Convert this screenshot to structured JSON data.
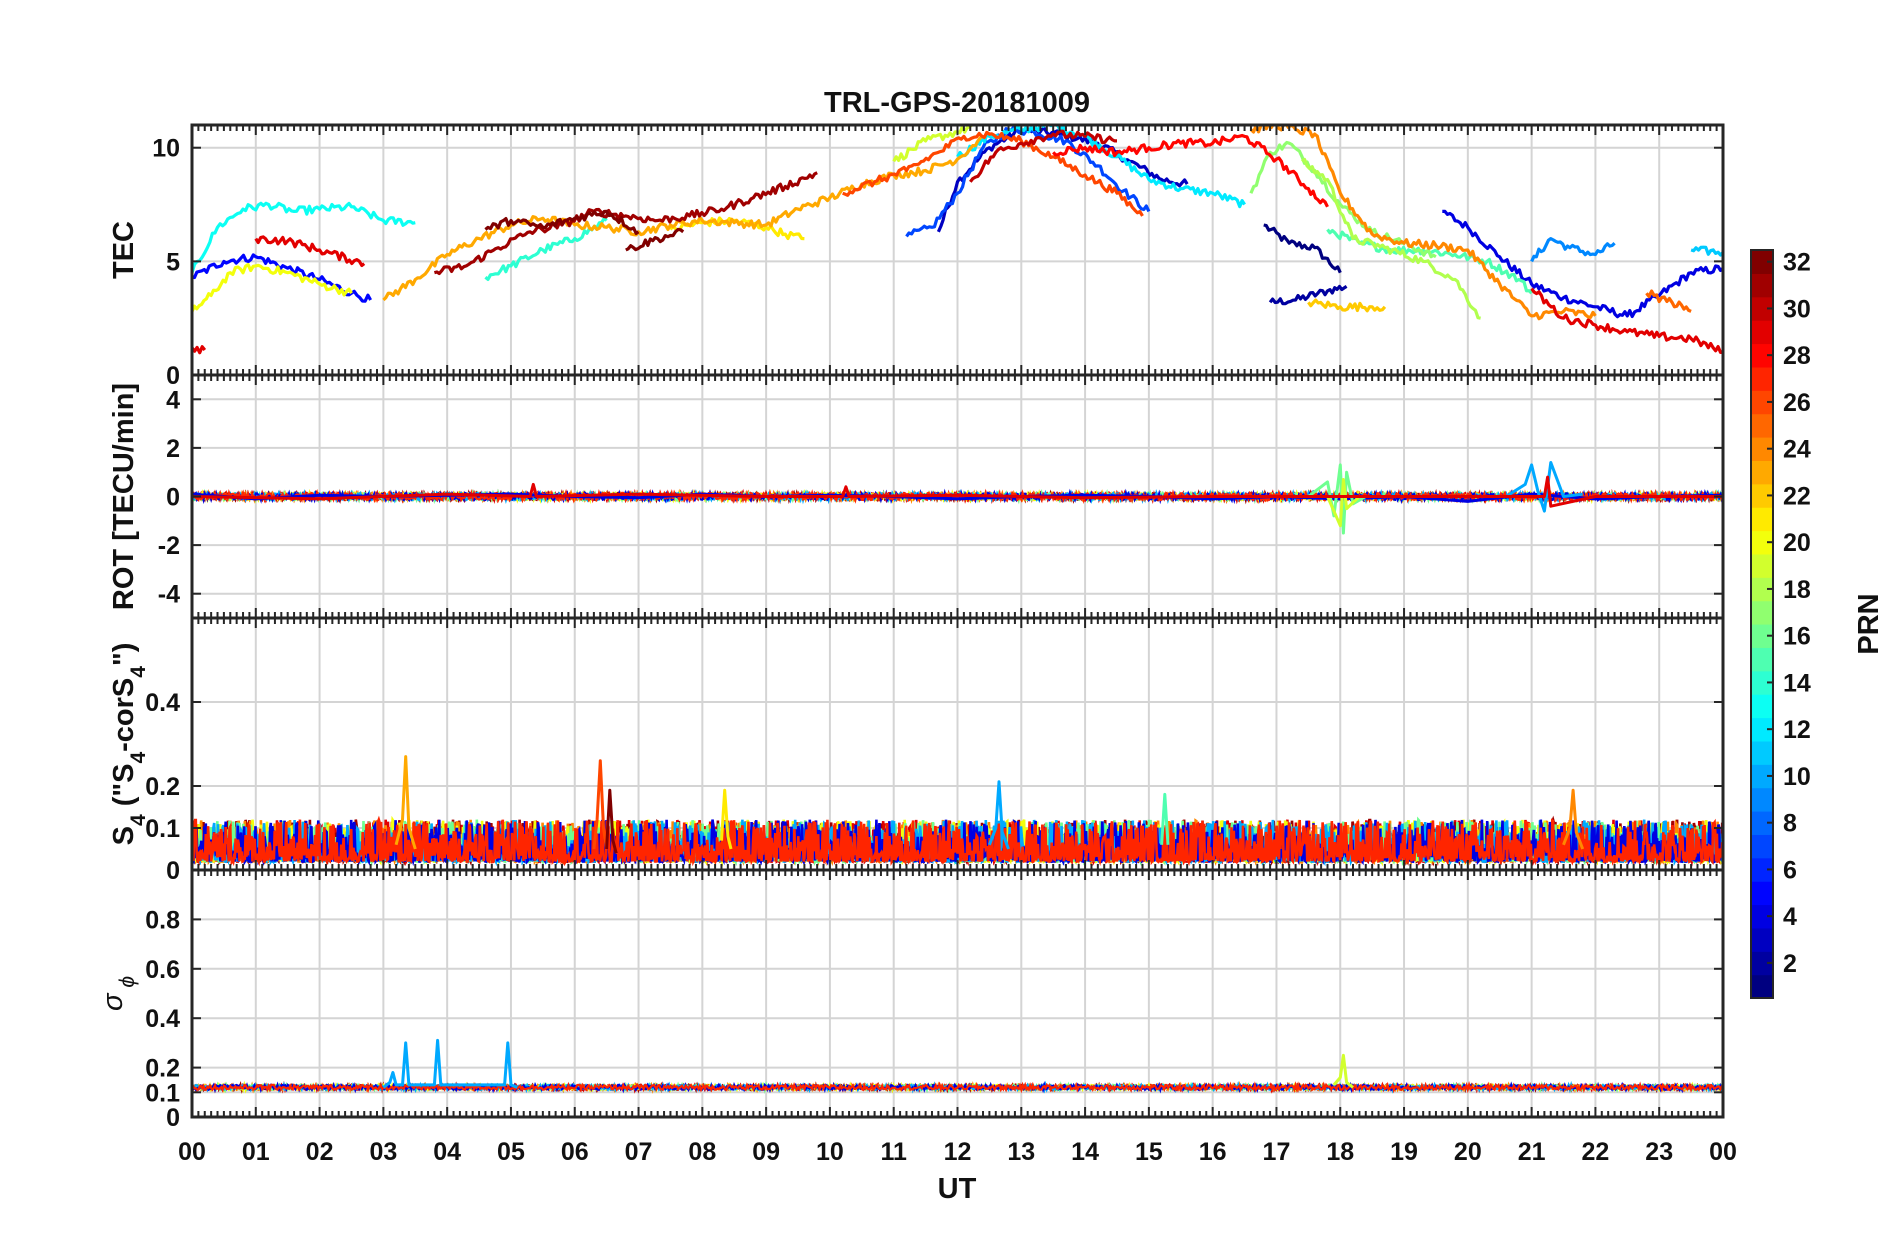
{
  "chart_data": [
    {
      "type": "line",
      "panel": "tec",
      "title": "TRL-GPS-20181009",
      "ylabel": "TEC",
      "ylim": [
        0,
        11
      ],
      "yticks": [
        "0",
        "5",
        "10"
      ],
      "grid": true,
      "series": [
        {
          "prn": 1,
          "x": [
            16.8,
            17.2,
            17.6,
            18.0
          ],
          "y": [
            6.6,
            5.8,
            5.6,
            4.5
          ]
        },
        {
          "prn": 2,
          "x": [
            16.9,
            17.3,
            17.8,
            18.1
          ],
          "y": [
            3.2,
            3.3,
            3.7,
            3.9
          ]
        },
        {
          "prn": 3,
          "x": [
            11.7,
            12.0,
            12.5,
            13.0,
            13.6,
            14.2,
            14.7,
            15.2,
            15.6
          ],
          "y": [
            6.3,
            8.5,
            10.0,
            10.8,
            10.6,
            10.2,
            9.4,
            8.6,
            8.4
          ]
        },
        {
          "prn": 4,
          "x": [
            19.6,
            20.0,
            20.5,
            21.0,
            21.5,
            22.0,
            22.5,
            23.0,
            23.5,
            24.0
          ],
          "y": [
            7.2,
            6.5,
            5.2,
            4.0,
            3.4,
            3.0,
            2.6,
            3.5,
            4.5,
            4.7
          ]
        },
        {
          "prn": 5,
          "x": [
            0.0,
            0.5,
            1.0,
            1.5,
            2.0,
            2.5,
            2.8
          ],
          "y": [
            4.3,
            5.0,
            5.2,
            4.7,
            4.2,
            3.6,
            3.3
          ]
        },
        {
          "prn": 7,
          "x": [
            11.2,
            11.6,
            12.0,
            12.4,
            12.8,
            13.2,
            13.7,
            14.2,
            14.6,
            15.0
          ],
          "y": [
            6.1,
            6.5,
            8.0,
            10.0,
            10.8,
            10.7,
            10.3,
            9.2,
            8.1,
            7.2
          ]
        },
        {
          "prn": 9,
          "x": [
            21.0,
            21.3,
            21.6,
            22.0,
            22.3
          ],
          "y": [
            5.0,
            6.0,
            5.6,
            5.3,
            5.8
          ]
        },
        {
          "prn": 11,
          "x": [
            23.5,
            24.0
          ],
          "y": [
            5.5,
            5.4
          ]
        },
        {
          "prn": 12,
          "x": [
            12.0,
            12.5,
            13.0,
            13.5,
            14.0,
            14.5,
            15.0,
            15.5,
            16.0,
            16.5
          ],
          "y": [
            9.6,
            10.5,
            10.8,
            11.0,
            10.5,
            9.6,
            8.6,
            8.2,
            8.0,
            7.5
          ]
        },
        {
          "prn": 13,
          "x": [
            0.0,
            0.4,
            0.8,
            1.2,
            1.6,
            2.0,
            2.5,
            3.0,
            3.5
          ],
          "y": [
            4.5,
            6.5,
            7.3,
            7.5,
            7.2,
            7.3,
            7.4,
            6.8,
            6.7
          ]
        },
        {
          "prn": 14,
          "x": [
            4.6,
            5.0,
            5.5,
            6.0,
            6.5
          ],
          "y": [
            4.3,
            4.8,
            5.5,
            6.0,
            6.8
          ]
        },
        {
          "prn": 15,
          "x": [
            17.8,
            18.3,
            18.8,
            19.3,
            19.8,
            20.3,
            20.8,
            21.0
          ],
          "y": [
            6.4,
            5.8,
            5.5,
            5.5,
            5.3,
            5.0,
            4.2,
            3.6
          ]
        },
        {
          "prn": 17,
          "x": [
            16.6,
            16.9,
            17.2,
            17.6,
            18.0,
            18.5,
            19.0,
            19.5
          ],
          "y": [
            8.0,
            9.8,
            10.2,
            9.0,
            7.5,
            6.3,
            5.8,
            5.2
          ]
        },
        {
          "prn": 18,
          "x": [
            17.4,
            17.8,
            18.2,
            18.7,
            19.3,
            19.8,
            20.2
          ],
          "y": [
            9.4,
            8.6,
            6.0,
            5.6,
            5.0,
            4.2,
            2.5
          ]
        },
        {
          "prn": 19,
          "x": [
            11.0,
            11.5,
            12.0,
            12.3
          ],
          "y": [
            9.4,
            10.3,
            10.7,
            11.0
          ]
        },
        {
          "prn": 20,
          "x": [
            0.0,
            0.3,
            0.6,
            1.0,
            1.5,
            2.0,
            2.5
          ],
          "y": [
            2.8,
            3.5,
            4.5,
            4.8,
            4.5,
            4.0,
            3.6
          ]
        },
        {
          "prn": 21,
          "x": [
            7.5,
            8.0,
            8.5,
            9.0,
            9.3,
            9.6
          ],
          "y": [
            6.4,
            6.7,
            6.8,
            6.5,
            6.2,
            6.0
          ]
        },
        {
          "prn": 22,
          "x": [
            17.5,
            18.0,
            18.5,
            18.7
          ],
          "y": [
            3.2,
            3.0,
            3.0,
            3.0
          ]
        },
        {
          "prn": 23,
          "x": [
            3.0,
            3.5,
            4.0,
            4.5,
            5.0,
            5.5,
            6.0,
            6.5,
            7.0,
            7.5,
            8.0,
            8.5,
            9.0,
            9.5,
            10.0,
            10.5,
            11.0,
            11.5,
            12.0,
            12.4
          ],
          "y": [
            3.3,
            4.2,
            5.3,
            6.0,
            6.6,
            6.9,
            6.6,
            6.5,
            6.3,
            6.6,
            6.8,
            6.7,
            6.6,
            7.3,
            7.8,
            8.4,
            8.8,
            9.0,
            9.5,
            10.5
          ]
        },
        {
          "prn": 24,
          "x": [
            16.6,
            17.0,
            17.3,
            17.6,
            18.0,
            18.5,
            19.0,
            19.5,
            20.0,
            20.5,
            21.0,
            21.5,
            22.0
          ],
          "y": [
            10.8,
            11.0,
            10.8,
            10.6,
            8.0,
            6.2,
            5.8,
            5.7,
            5.5,
            4.0,
            2.6,
            2.8,
            2.6
          ]
        },
        {
          "prn": 25,
          "x": [
            22.8,
            23.2,
            23.5
          ],
          "y": [
            3.6,
            3.2,
            2.8
          ]
        },
        {
          "prn": 26,
          "x": [
            10.2,
            10.7,
            11.2,
            11.7,
            12.1,
            12.5,
            13.0,
            13.5,
            14.0,
            14.5,
            14.9
          ],
          "y": [
            8.0,
            8.5,
            9.0,
            9.8,
            10.5,
            10.6,
            10.3,
            9.6,
            8.8,
            8.0,
            7.0
          ]
        },
        {
          "prn": 28,
          "x": [
            13.5,
            14.0,
            14.5,
            15.0,
            15.5,
            16.0,
            16.5,
            17.0,
            17.5,
            17.8
          ],
          "y": [
            9.8,
            10.0,
            9.8,
            10.0,
            10.2,
            10.2,
            10.5,
            9.5,
            8.2,
            7.4
          ]
        },
        {
          "prn": 29,
          "x": [
            0.0,
            0.2
          ],
          "y": [
            1.2,
            1.1
          ]
        },
        {
          "prn": 29,
          "x": [
            21.0,
            21.5,
            22.0,
            22.5,
            23.0,
            23.5,
            24.0
          ],
          "y": [
            3.8,
            2.5,
            2.2,
            1.9,
            1.7,
            1.6,
            1.0
          ]
        },
        {
          "prn": 29,
          "x": [
            1.0,
            1.5,
            2.0,
            2.7
          ],
          "y": [
            6.0,
            5.9,
            5.5,
            4.9
          ]
        },
        {
          "prn": 30,
          "x": [
            12.2,
            12.6,
            13.0,
            13.5,
            14.0,
            14.5
          ],
          "y": [
            8.5,
            9.8,
            10.2,
            10.6,
            10.5,
            10.3
          ]
        },
        {
          "prn": 31,
          "x": [
            3.8,
            4.3,
            4.8,
            5.3,
            5.8,
            6.3,
            6.8,
            7.3,
            7.8,
            8.3,
            8.8,
            9.3,
            9.8
          ],
          "y": [
            4.5,
            4.8,
            5.6,
            6.3,
            6.6,
            7.2,
            7.0,
            6.8,
            7.0,
            7.3,
            7.8,
            8.3,
            8.9
          ]
        },
        {
          "prn": 32,
          "x": [
            4.6,
            5.0,
            5.5,
            6.0,
            6.5,
            7.0
          ],
          "y": [
            6.4,
            6.8,
            6.5,
            6.9,
            7.2,
            6.3
          ]
        },
        {
          "prn": 32,
          "x": [
            6.8,
            7.3,
            7.7
          ],
          "y": [
            5.5,
            6.0,
            6.3
          ]
        }
      ]
    },
    {
      "type": "line",
      "panel": "rot",
      "ylabel": "ROT [TECU/min]",
      "ylim": [
        -5,
        5
      ],
      "yticks": [
        "-4",
        "-2",
        "0",
        "2",
        "4"
      ],
      "grid": true,
      "series": [
        {
          "prn": 4,
          "x": [
            0,
            1,
            2,
            3,
            4,
            5,
            6,
            7,
            8,
            9,
            10,
            11,
            12,
            13,
            14,
            15,
            16,
            17,
            18,
            19,
            20,
            21,
            22,
            23,
            24
          ],
          "y": [
            0.1,
            -0.1,
            0.05,
            0.0,
            0.05,
            0.1,
            0.0,
            -0.05,
            0.1,
            0.0,
            0.05,
            0.0,
            -0.1,
            0.0,
            0.05,
            0.0,
            -0.1,
            0.0,
            -0.1,
            0.0,
            -0.2,
            0.1,
            -0.1,
            0.0,
            0.05
          ]
        },
        {
          "prn": 10,
          "x": [
            20.6,
            20.9,
            21.0,
            21.1,
            21.2,
            21.3,
            21.5,
            21.8
          ],
          "y": [
            0.0,
            0.5,
            1.3,
            0.2,
            -0.6,
            1.4,
            0.0,
            0.1
          ]
        },
        {
          "prn": 16,
          "x": [
            17.5,
            17.8,
            17.9,
            18.0,
            18.05,
            18.1,
            18.2,
            18.4,
            18.8
          ],
          "y": [
            0.0,
            0.6,
            -0.8,
            1.3,
            -1.5,
            1.0,
            -0.3,
            0.0,
            0.0
          ]
        },
        {
          "prn": 19,
          "x": [
            17.8,
            18.0,
            18.05,
            18.1,
            18.3
          ],
          "y": [
            0.0,
            -1.2,
            0.7,
            -0.5,
            0.0
          ]
        },
        {
          "prn": 29,
          "x": [
            0,
            2,
            4,
            5.3,
            5.35,
            5.4,
            7,
            9,
            10.2,
            10.25,
            10.3,
            12,
            14,
            16,
            18,
            20,
            21.2,
            21.25,
            21.3,
            22,
            24
          ],
          "y": [
            0.0,
            -0.1,
            0.1,
            0.0,
            0.5,
            0.0,
            0.1,
            0.0,
            0.0,
            0.4,
            0.0,
            0.05,
            -0.05,
            0.0,
            0.0,
            0.0,
            0.0,
            0.8,
            -0.4,
            0.0,
            0.0
          ]
        }
      ]
    },
    {
      "type": "line",
      "panel": "s4",
      "ylabel": "S4 (\"S4-corS4\")",
      "ylabel_main": "S",
      "ylabel_sub": "4",
      "ylabel_rest": " (\"S",
      "ylabel_sub2": "4",
      "ylabel_end": "-corS",
      "ylabel_sub3": "4",
      "ylabel_close": "\")",
      "ylim": [
        0,
        0.6
      ],
      "yticks": [
        "0",
        "0.1",
        "0.2",
        "0.4"
      ],
      "grid": true,
      "series": [
        {
          "prn": 23,
          "x": [
            3.2,
            3.3,
            3.35,
            3.4,
            3.5
          ],
          "y": [
            0.06,
            0.12,
            0.27,
            0.1,
            0.05
          ]
        },
        {
          "prn": 26,
          "x": [
            6.3,
            6.35,
            6.4,
            6.45,
            6.5
          ],
          "y": [
            0.05,
            0.12,
            0.26,
            0.1,
            0.05
          ]
        },
        {
          "prn": 10,
          "x": [
            12.5,
            12.6,
            12.65,
            12.7,
            12.8
          ],
          "y": [
            0.06,
            0.1,
            0.21,
            0.09,
            0.05
          ]
        },
        {
          "prn": 24,
          "x": [
            21.5,
            21.6,
            21.65,
            21.7,
            21.8
          ],
          "y": [
            0.06,
            0.1,
            0.19,
            0.09,
            0.05
          ]
        },
        {
          "prn": 21,
          "x": [
            8.3,
            8.35,
            8.4,
            8.45
          ],
          "y": [
            0.07,
            0.19,
            0.08,
            0.05
          ]
        },
        {
          "prn": 32,
          "x": [
            6.5,
            6.55,
            6.6,
            6.65
          ],
          "y": [
            0.05,
            0.19,
            0.07,
            0.04
          ]
        },
        {
          "prn": 15,
          "x": [
            15.2,
            15.25,
            15.3
          ],
          "y": [
            0.06,
            0.18,
            0.06
          ]
        }
      ]
    },
    {
      "type": "line",
      "panel": "sigma_phi",
      "ylabel": "σ ϕ",
      "ylabel_main": "σ",
      "ylabel_sub": "ϕ",
      "ylim": [
        0,
        1
      ],
      "yticks": [
        "0",
        "0.1",
        "0.2",
        "0.4",
        "0.6",
        "0.8"
      ],
      "grid": true,
      "series": [
        {
          "prn": 10,
          "x": [
            3.0,
            3.1,
            3.15,
            3.2,
            3.3,
            3.35,
            3.4,
            3.5,
            3.8,
            3.85,
            3.9,
            4.0,
            4.9,
            4.95,
            5.0,
            5.1
          ],
          "y": [
            0.12,
            0.14,
            0.18,
            0.13,
            0.13,
            0.3,
            0.13,
            0.13,
            0.13,
            0.31,
            0.13,
            0.13,
            0.13,
            0.3,
            0.13,
            0.12
          ]
        },
        {
          "prn": 19,
          "x": [
            17.9,
            18.0,
            18.05,
            18.1,
            18.2
          ],
          "y": [
            0.13,
            0.16,
            0.25,
            0.14,
            0.12
          ]
        }
      ]
    },
    {
      "type": "colorbar",
      "label": "PRN",
      "range": [
        1,
        32
      ],
      "ticks": [
        "2",
        "4",
        "6",
        "8",
        "10",
        "12",
        "14",
        "16",
        "18",
        "20",
        "22",
        "24",
        "26",
        "28",
        "30",
        "32"
      ],
      "colormap": "jet"
    }
  ],
  "x_axis": {
    "label": "UT",
    "xlim": [
      0,
      24
    ],
    "tick_labels": [
      "00",
      "01",
      "02",
      "03",
      "04",
      "05",
      "06",
      "07",
      "08",
      "09",
      "10",
      "11",
      "12",
      "13",
      "14",
      "15",
      "16",
      "17",
      "18",
      "19",
      "20",
      "21",
      "22",
      "23",
      "00"
    ]
  },
  "noise_band": {
    "rot": {
      "amplitude": 0.15
    },
    "s4": {
      "base": 0.02,
      "amplitude": 0.1
    },
    "sigma_phi": {
      "base": 0.12,
      "amplitude": 0.02
    }
  }
}
